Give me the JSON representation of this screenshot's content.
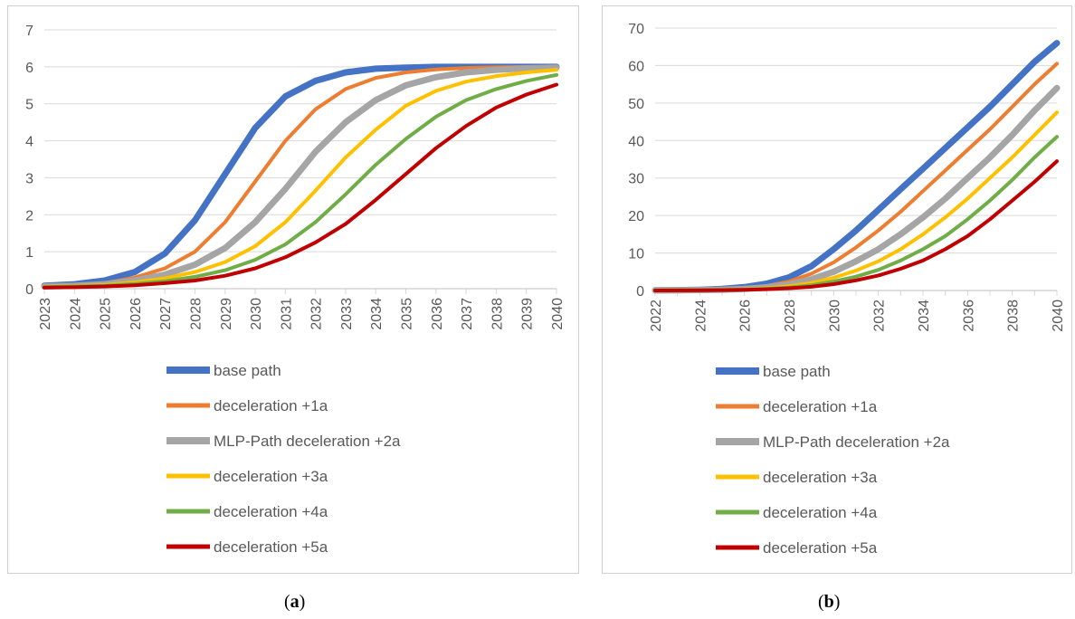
{
  "chart_data": [
    {
      "type": "line",
      "title": "",
      "xlabel": "",
      "ylabel": "",
      "x": [
        "2023",
        "2024",
        "2025",
        "2026",
        "2027",
        "2028",
        "2029",
        "2030",
        "2031",
        "2032",
        "2033",
        "2034",
        "2035",
        "2036",
        "2037",
        "2038",
        "2039",
        "2040"
      ],
      "ylim": [
        0,
        7
      ],
      "yticks": [
        "0",
        "1",
        "2",
        "3",
        "4",
        "5",
        "6",
        "7"
      ],
      "grid": "horizontal",
      "legend": "bottom",
      "series": [
        {
          "name": "base path",
          "color": "#4472C4",
          "values": [
            0.08,
            0.12,
            0.22,
            0.45,
            0.95,
            1.85,
            3.1,
            4.35,
            5.2,
            5.62,
            5.85,
            5.95,
            5.98,
            6.0,
            6.0,
            6.0,
            6.0,
            6.0
          ]
        },
        {
          "name": "deceleration +1a",
          "color": "#ED7D31",
          "values": [
            0.07,
            0.1,
            0.15,
            0.3,
            0.55,
            1.0,
            1.8,
            2.9,
            4.0,
            4.85,
            5.4,
            5.7,
            5.85,
            5.93,
            5.97,
            5.99,
            6.0,
            6.0
          ]
        },
        {
          "name": "MLP-Path deceleration +2a",
          "color": "#A5A5A5",
          "values": [
            0.06,
            0.08,
            0.12,
            0.22,
            0.38,
            0.65,
            1.1,
            1.8,
            2.7,
            3.7,
            4.5,
            5.1,
            5.5,
            5.72,
            5.85,
            5.92,
            5.96,
            5.98
          ]
        },
        {
          "name": "deceleration +3a",
          "color": "#FFC000",
          "values": [
            0.05,
            0.07,
            0.1,
            0.17,
            0.28,
            0.45,
            0.72,
            1.15,
            1.8,
            2.65,
            3.55,
            4.3,
            4.95,
            5.35,
            5.6,
            5.75,
            5.85,
            5.92
          ]
        },
        {
          "name": "deceleration +4a",
          "color": "#70AD47",
          "values": [
            0.04,
            0.06,
            0.08,
            0.13,
            0.2,
            0.32,
            0.5,
            0.78,
            1.2,
            1.8,
            2.55,
            3.35,
            4.05,
            4.65,
            5.1,
            5.4,
            5.62,
            5.78
          ]
        },
        {
          "name": "deceleration +5a",
          "color": "#C00000",
          "values": [
            0.03,
            0.04,
            0.06,
            0.09,
            0.15,
            0.22,
            0.35,
            0.55,
            0.85,
            1.25,
            1.75,
            2.4,
            3.1,
            3.8,
            4.4,
            4.9,
            5.25,
            5.52
          ]
        }
      ]
    },
    {
      "type": "line",
      "title": "",
      "xlabel": "",
      "ylabel": "",
      "x": [
        "2022",
        "2023",
        "2024",
        "2025",
        "2026",
        "2027",
        "2028",
        "2029",
        "2030",
        "2031",
        "2032",
        "2033",
        "2034",
        "2035",
        "2036",
        "2037",
        "2038",
        "2039",
        "2040"
      ],
      "xticks": [
        "2022",
        "2024",
        "2026",
        "2028",
        "2030",
        "2032",
        "2034",
        "2036",
        "2038",
        "2040"
      ],
      "ylim": [
        0,
        70
      ],
      "yticks": [
        "0",
        "10",
        "20",
        "30",
        "40",
        "50",
        "60",
        "70"
      ],
      "grid": "horizontal",
      "legend": "bottom",
      "series": [
        {
          "name": "base path",
          "color": "#4472C4",
          "values": [
            0.05,
            0.1,
            0.2,
            0.4,
            0.9,
            1.8,
            3.5,
            6.5,
            11,
            16,
            21.5,
            27,
            32.5,
            38,
            43.5,
            49,
            55,
            61,
            66
          ]
        },
        {
          "name": "deceleration +1a",
          "color": "#ED7D31",
          "values": [
            0.04,
            0.08,
            0.15,
            0.3,
            0.6,
            1.2,
            2.4,
            4.5,
            7.5,
            11.5,
            16,
            21,
            26.5,
            32,
            37.5,
            43,
            49,
            55,
            60.5
          ]
        },
        {
          "name": "MLP-Path deceleration +2a",
          "color": "#A5A5A5",
          "values": [
            0.03,
            0.06,
            0.12,
            0.22,
            0.42,
            0.85,
            1.6,
            3,
            5,
            7.8,
            11,
            15,
            19.5,
            24.5,
            30,
            35.5,
            41.5,
            48,
            54
          ]
        },
        {
          "name": "deceleration +3a",
          "color": "#FFC000",
          "values": [
            0.02,
            0.05,
            0.1,
            0.18,
            0.32,
            0.6,
            1.1,
            2,
            3.4,
            5.3,
            7.8,
            11,
            15,
            19.5,
            24.5,
            30,
            35.5,
            41.5,
            47.5
          ]
        },
        {
          "name": "deceleration +4a",
          "color": "#70AD47",
          "values": [
            0.02,
            0.04,
            0.08,
            0.14,
            0.25,
            0.45,
            0.8,
            1.4,
            2.4,
            3.7,
            5.5,
            8,
            11,
            14.5,
            19,
            24,
            29.5,
            35.5,
            41
          ]
        },
        {
          "name": "deceleration +5a",
          "color": "#C00000",
          "values": [
            0.01,
            0.03,
            0.06,
            0.1,
            0.18,
            0.33,
            0.6,
            1,
            1.7,
            2.7,
            4,
            5.8,
            8,
            11,
            14.5,
            19,
            24,
            29,
            34.5
          ]
        }
      ]
    }
  ],
  "captions": [
    "a",
    "b"
  ]
}
